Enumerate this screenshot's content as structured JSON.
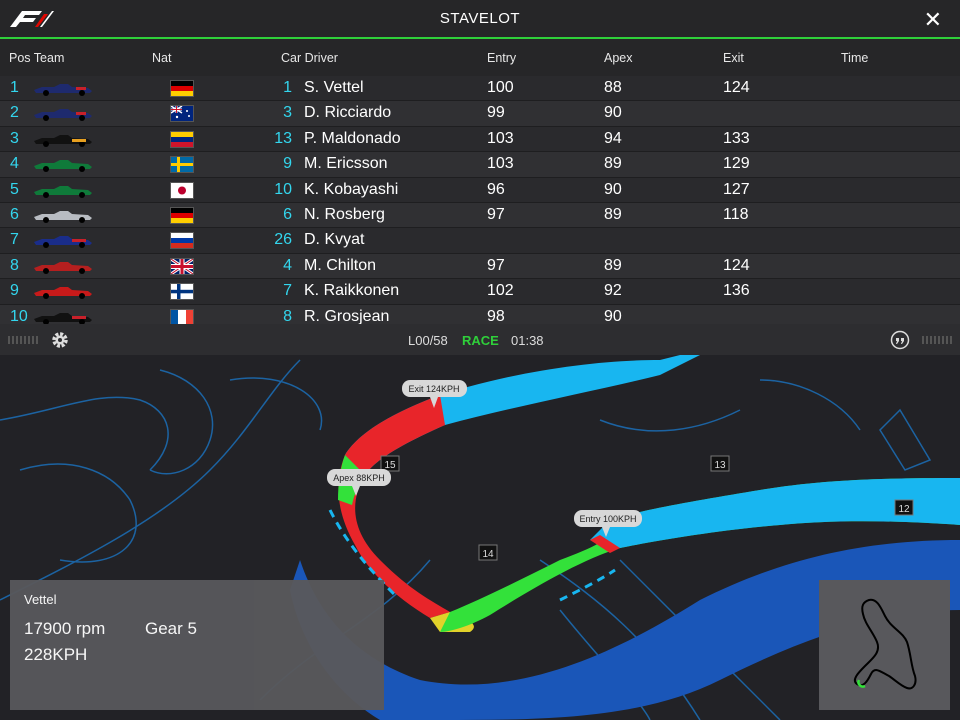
{
  "window": {
    "title": "STAVELOT"
  },
  "columns": {
    "pos_team": "Pos Team",
    "nat": "Nat",
    "car_driver": "Car Driver",
    "entry": "Entry",
    "apex": "Apex",
    "exit": "Exit",
    "time": "Time"
  },
  "drivers": [
    {
      "pos": "1",
      "num": "1",
      "driver": "S. Vettel",
      "entry": "100",
      "apex": "88",
      "exit": "124",
      "time": "",
      "team_color": "#1e2a6e",
      "flag": "germany-flag"
    },
    {
      "pos": "2",
      "num": "3",
      "driver": "D. Ricciardo",
      "entry": "99",
      "apex": "90",
      "exit": "",
      "time": "",
      "team_color": "#1e2a6e",
      "flag": "australia-flag"
    },
    {
      "pos": "3",
      "num": "13",
      "driver": "P. Maldonado",
      "entry": "103",
      "apex": "94",
      "exit": "133",
      "time": "",
      "team_color": "#111111",
      "flag": "venezuela-flag"
    },
    {
      "pos": "4",
      "num": "9",
      "driver": "M. Ericsson",
      "entry": "103",
      "apex": "89",
      "exit": "129",
      "time": "",
      "team_color": "#0f7a3a",
      "flag": "sweden-flag"
    },
    {
      "pos": "5",
      "num": "10",
      "driver": "K. Kobayashi",
      "entry": "96",
      "apex": "90",
      "exit": "127",
      "time": "",
      "team_color": "#0f7a3a",
      "flag": "japan-flag"
    },
    {
      "pos": "6",
      "num": "6",
      "driver": "N. Rosberg",
      "entry": "97",
      "apex": "89",
      "exit": "118",
      "time": "",
      "team_color": "#b8bcc2",
      "flag": "germany-flag"
    },
    {
      "pos": "7",
      "num": "26",
      "driver": "D. Kvyat",
      "entry": "",
      "apex": "",
      "exit": "",
      "time": "",
      "team_color": "#1a2d8a",
      "flag": "russia-flag"
    },
    {
      "pos": "8",
      "num": "4",
      "driver": "M. Chilton",
      "entry": "97",
      "apex": "89",
      "exit": "124",
      "time": "",
      "team_color": "#b51f1f",
      "flag": "uk-flag"
    },
    {
      "pos": "9",
      "num": "7",
      "driver": "K. Raikkonen",
      "entry": "102",
      "apex": "92",
      "exit": "136",
      "time": "",
      "team_color": "#c81a1a",
      "flag": "finland-flag"
    },
    {
      "pos": "10",
      "num": "8",
      "driver": "R. Grosjean",
      "entry": "98",
      "apex": "90",
      "exit": "",
      "time": "",
      "team_color": "#111111",
      "flag": "france-flag"
    }
  ],
  "status": {
    "lap": "L00/58",
    "state": "RACE",
    "clock": "01:38"
  },
  "map": {
    "callouts": {
      "exit": "Exit 124KPH",
      "apex": "Apex 88KPH",
      "entry": "Entry 100KPH"
    },
    "turns": [
      "15",
      "13",
      "14",
      "12"
    ]
  },
  "telemetry": {
    "driver": "Vettel",
    "rpm": "17900 rpm",
    "gear": "Gear 5",
    "speed": "228KPH"
  },
  "colors": {
    "accent": "#2fcf3a",
    "cyan": "#33d6ee",
    "track_blue": "#0fa8e8",
    "brake_red": "#e8252a",
    "throttle_green": "#33e13a",
    "lift_yellow": "#e2d22a"
  }
}
